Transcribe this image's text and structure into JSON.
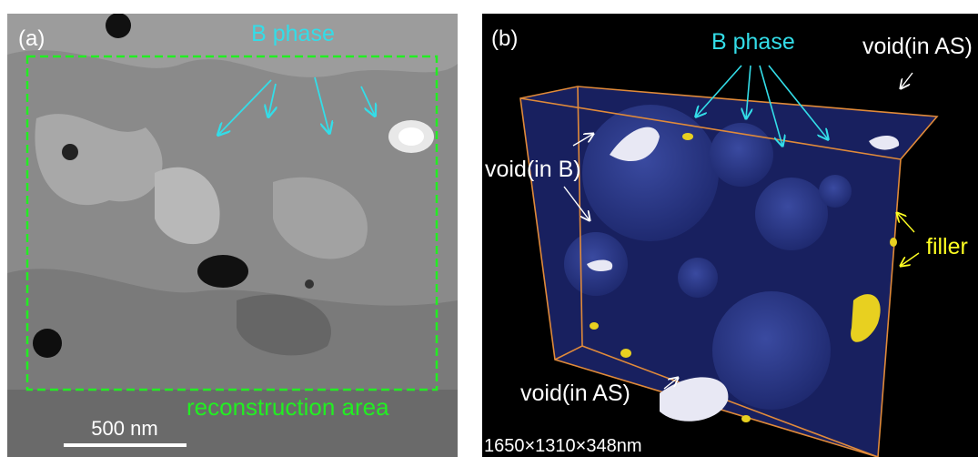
{
  "panel_a": {
    "label": "(a)",
    "annotation": "B phase",
    "region_label": "reconstruction area",
    "scale_bar": "500 nm"
  },
  "panel_b": {
    "label": "(b)",
    "annotations": {
      "b_phase": "B phase",
      "void_as_top": "void(in AS)",
      "void_b": "void(in B)",
      "filler": "filler",
      "void_as_bottom": "void(in AS)"
    },
    "dimensions": "1650×1310×348nm"
  }
}
